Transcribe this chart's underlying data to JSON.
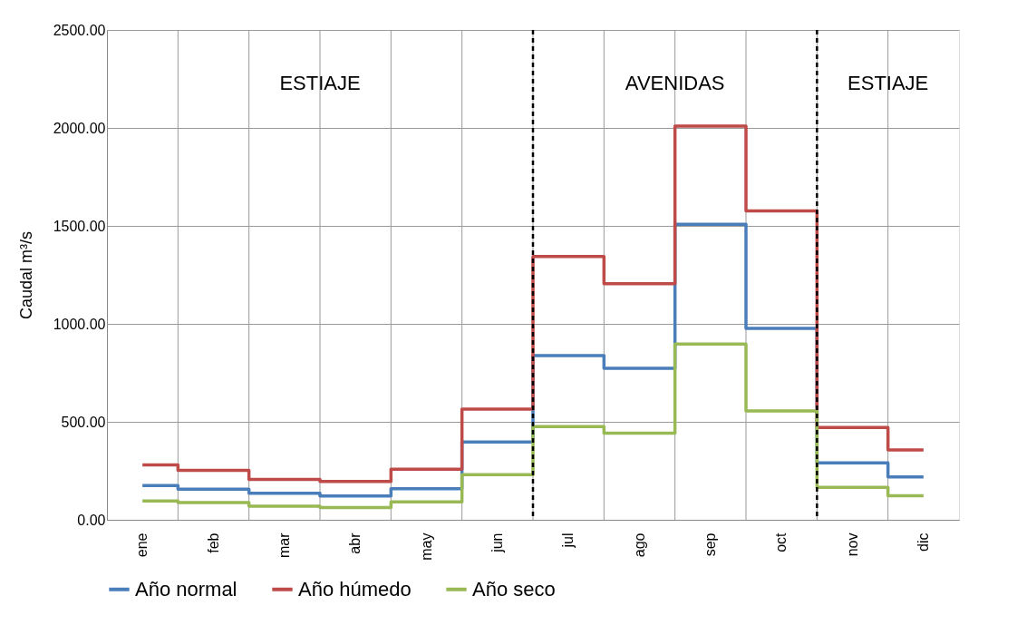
{
  "chart_data": {
    "type": "step",
    "ylabel": "Caudal m³/s",
    "categories": [
      "ene",
      "feb",
      "mar",
      "abr",
      "may",
      "jun",
      "jul",
      "ago",
      "sep",
      "oct",
      "nov",
      "dic"
    ],
    "series": [
      {
        "name": "Año normal",
        "color": "#4a7ebb",
        "values": [
          175,
          156,
          135,
          122,
          159,
          397,
          838,
          773,
          1508,
          977,
          290,
          219
        ]
      },
      {
        "name": "Año húmedo",
        "color": "#be4b48",
        "values": [
          280,
          252,
          206,
          196,
          258,
          565,
          1344,
          1205,
          2009,
          1576,
          471,
          357
        ]
      },
      {
        "name": "Año seco",
        "color": "#98b954",
        "values": [
          96,
          88,
          70,
          63,
          91,
          230,
          476,
          442,
          897,
          555,
          165,
          123
        ]
      }
    ],
    "ylim": [
      0,
      2500
    ],
    "yticks": [
      {
        "value": 0,
        "label": "0.00"
      },
      {
        "value": 500,
        "label": "500.00"
      },
      {
        "value": 1000,
        "label": "1000.00"
      },
      {
        "value": 1500,
        "label": "1500.00"
      },
      {
        "value": 2000,
        "label": "2000.00"
      },
      {
        "value": 2500,
        "label": "2500.00"
      }
    ],
    "annotations": [
      "ESTIAJE",
      "AVENIDAS",
      "ESTIAJE"
    ],
    "grid": true,
    "legend": "bottom",
    "marker": "none",
    "line_style": "solid"
  }
}
